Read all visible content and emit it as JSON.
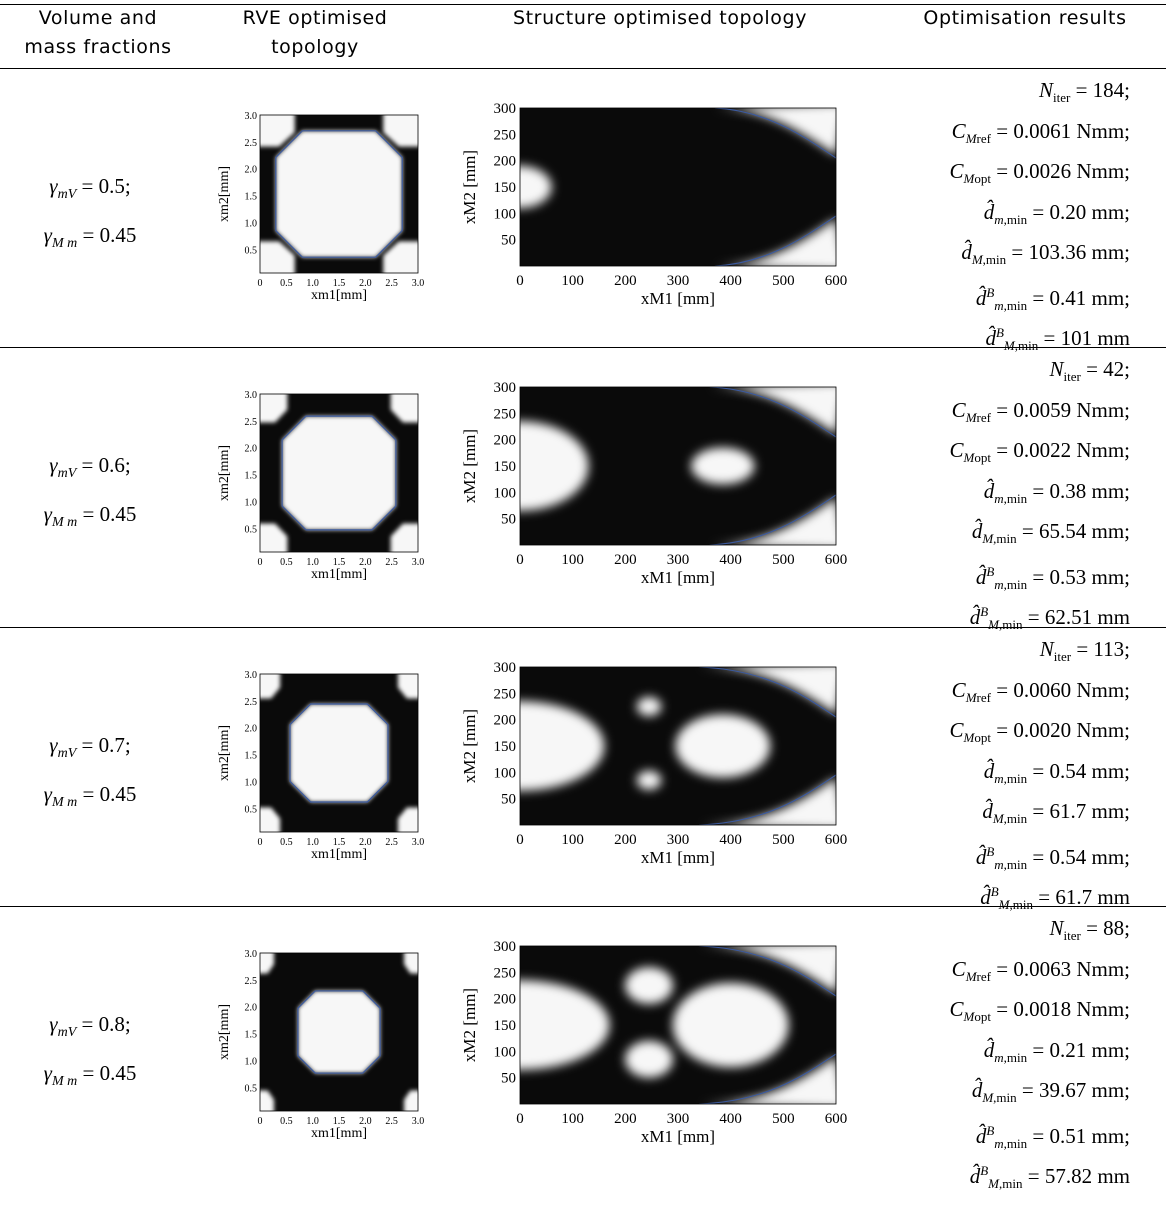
{
  "headers": {
    "col1": [
      "Volume and",
      "mass fractions"
    ],
    "col2": [
      "RVE optimised",
      "topology"
    ],
    "col3": "Structure optimised topology",
    "col4": "Optimisation results"
  },
  "rve_axes": {
    "ylabel": "x_m2[mm]",
    "xlabel": "x_m1[mm]",
    "yticks": [
      "3.0",
      "2.5",
      "2.0",
      "1.5",
      "1.0",
      "0.5"
    ],
    "xticks": [
      "0",
      "0.5",
      "1.0",
      "1.5",
      "2.0",
      "2.5",
      "3.0"
    ]
  },
  "struct_axes": {
    "ylabel": "x_M2 [mm]",
    "xlabel": "x_M1 [mm]",
    "yticks": [
      "300",
      "250",
      "200",
      "150",
      "100",
      "50"
    ],
    "xticks": [
      "0",
      "100",
      "200",
      "300",
      "400",
      "500",
      "600"
    ]
  },
  "rows": [
    {
      "gamma_mV": "0.5",
      "gamma_Mm": "0.45",
      "N_iter": "184",
      "C_Mref": "0.0061 Nmm",
      "C_Mopt": "0.0026 Nmm",
      "d_m_min": "0.20 mm",
      "d_M_min": "103.36 mm",
      "dB_m_min": "0.41 mm",
      "dB_M_min": "101 mm"
    },
    {
      "gamma_mV": "0.6",
      "gamma_Mm": "0.45",
      "N_iter": "42",
      "C_Mref": "0.0059 Nmm",
      "C_Mopt": "0.0022 Nmm",
      "d_m_min": "0.38 mm",
      "d_M_min": "65.54 mm",
      "dB_m_min": "0.53 mm",
      "dB_M_min": "62.51 mm"
    },
    {
      "gamma_mV": "0.7",
      "gamma_Mm": "0.45",
      "N_iter": "113",
      "C_Mref": "0.0060 Nmm",
      "C_Mopt": "0.0020 Nmm",
      "d_m_min": "0.54 mm",
      "d_M_min": "61.7 mm",
      "dB_m_min": "0.54 mm",
      "dB_M_min": "61.7 mm"
    },
    {
      "gamma_mV": "0.8",
      "gamma_Mm": "0.45",
      "N_iter": "88",
      "C_Mref": "0.0063 Nmm",
      "C_Mopt": "0.0018 Nmm",
      "d_m_min": "0.21 mm",
      "d_M_min": "39.67 mm",
      "dB_m_min": "0.51 mm",
      "dB_M_min": "57.82 mm"
    }
  ],
  "colors": {
    "solid": "#0a0a0a",
    "void": "#f7f7f7",
    "contour": "#3b5aa0"
  }
}
